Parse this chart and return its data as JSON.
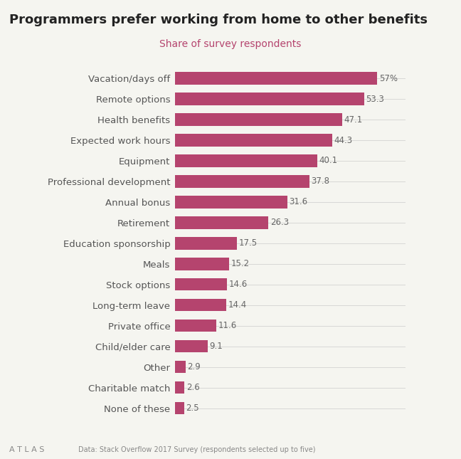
{
  "title": "Programmers prefer working from home to other benefits",
  "subtitle": "Share of survey respondents",
  "subtitle_color": "#b5446e",
  "bar_color": "#b5446e",
  "categories": [
    "Vacation/days off",
    "Remote options",
    "Health benefits",
    "Expected work hours",
    "Equipment",
    "Professional development",
    "Annual bonus",
    "Retirement",
    "Education sponsorship",
    "Meals",
    "Stock options",
    "Long-term leave",
    "Private office",
    "Child/elder care",
    "Other",
    "Charitable match",
    "None of these"
  ],
  "values": [
    57.0,
    53.3,
    47.1,
    44.3,
    40.1,
    37.8,
    31.6,
    26.3,
    17.5,
    15.2,
    14.6,
    14.4,
    11.6,
    9.1,
    2.9,
    2.6,
    2.5
  ],
  "value_labels": [
    "57%",
    "53.3",
    "47.1",
    "44.3",
    "40.1",
    "37.8",
    "31.6",
    "26.3",
    "17.5",
    "15.2",
    "14.6",
    "14.4",
    "11.6",
    "9.1",
    "2.9",
    "2.6",
    "2.5"
  ],
  "xlim": [
    0,
    65
  ],
  "background_color": "#f5f5f0",
  "footer_text": "Data: Stack Overflow 2017 Survey (respondents selected up to five)",
  "atlas_text": "A T L A S"
}
